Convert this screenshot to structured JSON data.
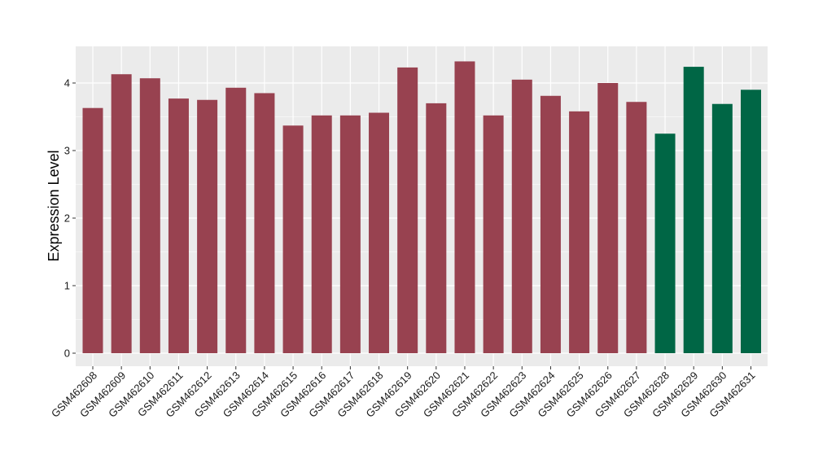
{
  "chart_data": {
    "type": "bar",
    "title": "",
    "xlabel": "",
    "ylabel": "Expression Level",
    "ylim": [
      -0.2,
      4.5
    ],
    "yticks": [
      0,
      1,
      2,
      3,
      4
    ],
    "grid": true,
    "legend": "none",
    "categories": [
      "GSM462608",
      "GSM462609",
      "GSM462610",
      "GSM462611",
      "GSM462612",
      "GSM462613",
      "GSM462614",
      "GSM462615",
      "GSM462616",
      "GSM462617",
      "GSM462618",
      "GSM462619",
      "GSM462620",
      "GSM462621",
      "GSM462622",
      "GSM462623",
      "GSM462624",
      "GSM462625",
      "GSM462626",
      "GSM462627",
      "GSM462628",
      "GSM462629",
      "GSM462630",
      "GSM462631"
    ],
    "values": [
      3.63,
      4.13,
      4.07,
      3.77,
      3.75,
      3.93,
      3.85,
      3.37,
      3.52,
      3.52,
      3.56,
      4.23,
      3.7,
      4.32,
      3.52,
      4.05,
      3.81,
      3.58,
      4.0,
      3.72,
      3.25,
      4.24,
      3.69,
      3.9
    ],
    "groups": [
      "a",
      "a",
      "a",
      "a",
      "a",
      "a",
      "a",
      "a",
      "a",
      "a",
      "a",
      "a",
      "a",
      "a",
      "a",
      "a",
      "a",
      "a",
      "a",
      "a",
      "b",
      "b",
      "b",
      "b"
    ],
    "colors": {
      "a": "#984250",
      "b": "#006645",
      "panel": "#ebebeb",
      "grid": "#ffffff"
    }
  }
}
